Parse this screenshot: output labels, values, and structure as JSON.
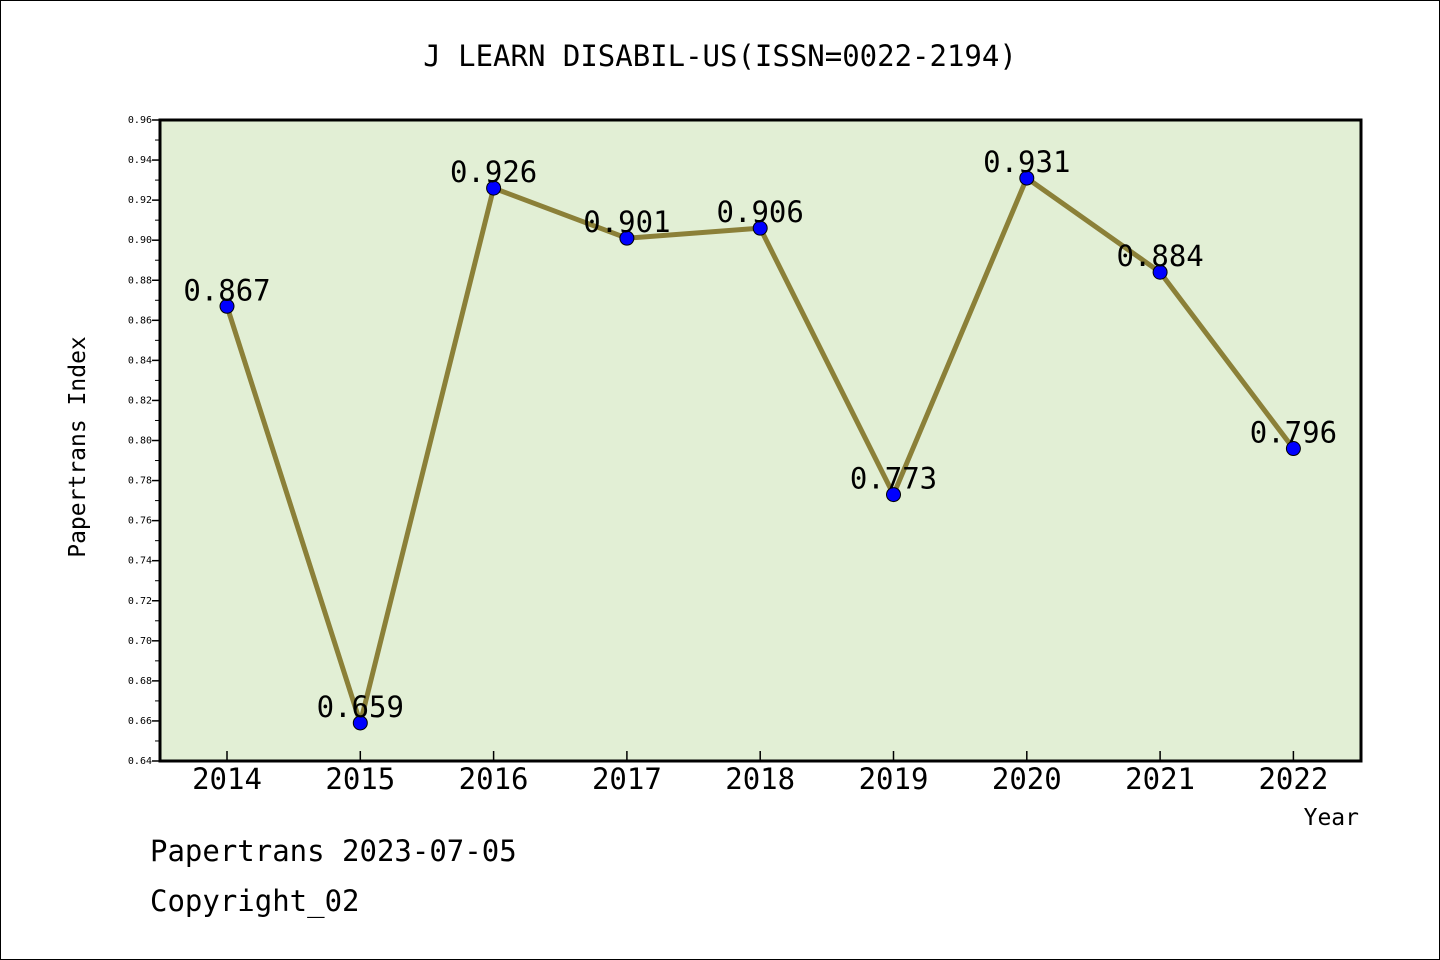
{
  "chart_data": {
    "type": "line",
    "title": "J LEARN DISABIL-US(ISSN=0022-2194)",
    "xlabel": "Year",
    "ylabel": "Papertrans Index",
    "categories": [
      "2014",
      "2015",
      "2016",
      "2017",
      "2018",
      "2019",
      "2020",
      "2021",
      "2022"
    ],
    "values": [
      0.867,
      0.659,
      0.926,
      0.901,
      0.906,
      0.773,
      0.931,
      0.884,
      0.796
    ],
    "data_labels": [
      "0.867",
      "0.659",
      "0.926",
      "0.901",
      "0.906",
      "0.773",
      "0.931",
      "0.884",
      "0.796"
    ],
    "ylim": [
      0.64,
      0.96
    ],
    "yticks": [
      "0.64",
      "0.66",
      "0.68",
      "0.70",
      "0.72",
      "0.74",
      "0.76",
      "0.78",
      "0.80",
      "0.82",
      "0.84",
      "0.86",
      "0.88",
      "0.90",
      "0.92",
      "0.94",
      "0.96"
    ],
    "grid": false,
    "colors": {
      "plot_background": "#e2efd5",
      "line": "#8b8038",
      "marker": "#0000ff"
    }
  },
  "footer": {
    "date_line": "Papertrans 2023-07-05",
    "copyright_line": "Copyright_02"
  }
}
